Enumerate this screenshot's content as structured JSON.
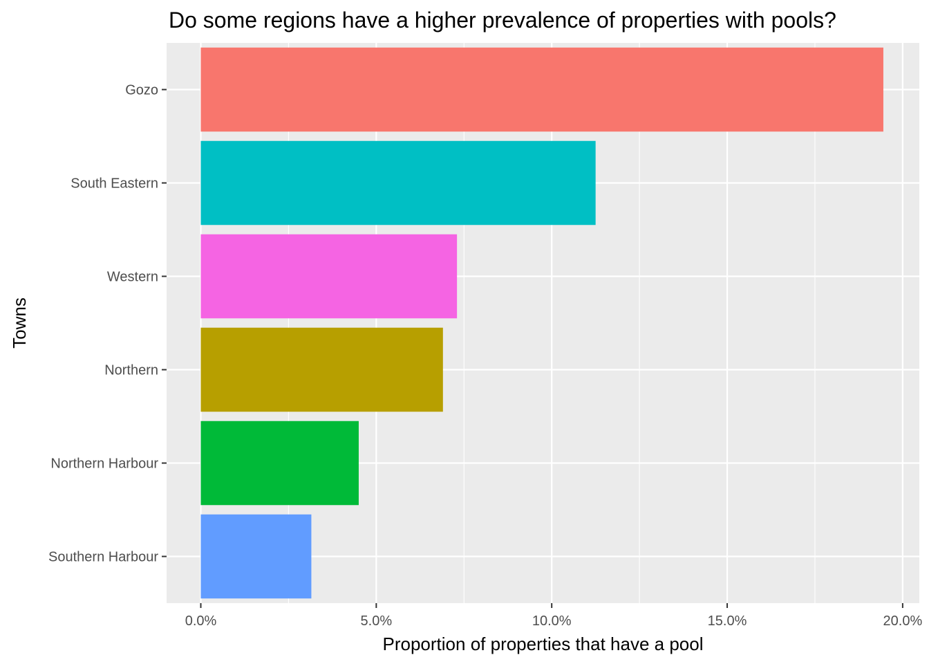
{
  "chart_data": {
    "type": "bar",
    "orientation": "horizontal",
    "title": "Do some regions have a higher prevalence of properties with pools?",
    "xlabel": "Proportion of properties that have a pool",
    "ylabel": "Towns",
    "categories": [
      "Gozo",
      "South Eastern",
      "Western",
      "Northern",
      "Northern Harbour",
      "Southern Harbour"
    ],
    "values": [
      0.1945,
      0.1125,
      0.073,
      0.069,
      0.045,
      0.0315
    ],
    "bar_colors": [
      "#F8766D",
      "#00BFC4",
      "#F564E3",
      "#B79F00",
      "#00BA38",
      "#619CFF"
    ],
    "x_ticks": [
      0,
      0.05,
      0.1,
      0.15,
      0.2
    ],
    "x_tick_labels": [
      "0.0%",
      "5.0%",
      "10.0%",
      "15.0%",
      "20.0%"
    ],
    "xlim": [
      -0.00975,
      0.20475
    ],
    "grid": true,
    "panel_background": "#EBEBEB",
    "grid_color": "#FFFFFF",
    "legend": "none"
  }
}
